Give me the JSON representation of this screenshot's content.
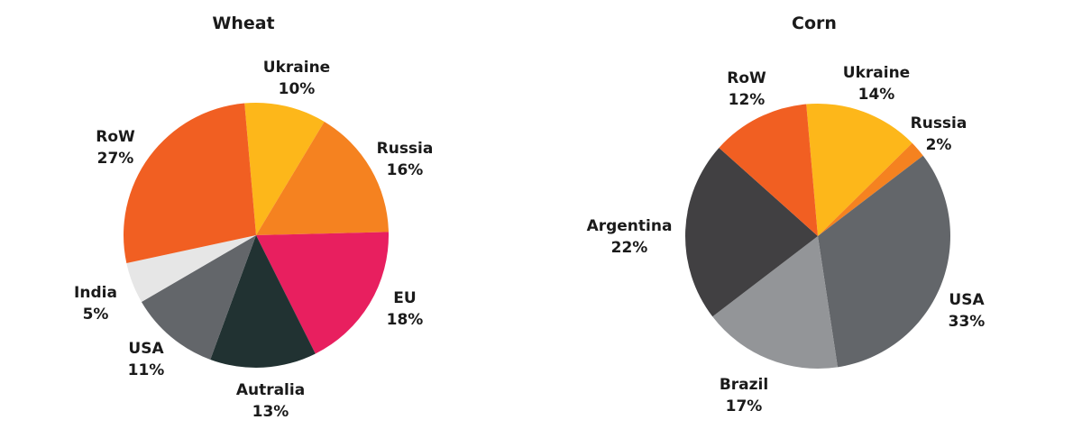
{
  "chart_data": [
    {
      "type": "pie",
      "title": "Wheat",
      "slices": [
        {
          "label": "Ukraine",
          "value": 10,
          "pct_label": "10%",
          "color": "#FDB71A"
        },
        {
          "label": "Russia",
          "value": 16,
          "pct_label": "16%",
          "color": "#F58220"
        },
        {
          "label": "EU",
          "value": 18,
          "pct_label": "18%",
          "color": "#E81F5F"
        },
        {
          "label": "Autralia",
          "value": 13,
          "pct_label": "13%",
          "color": "#213232"
        },
        {
          "label": "USA",
          "value": 11,
          "pct_label": "11%",
          "color": "#63666A"
        },
        {
          "label": "India",
          "value": 5,
          "pct_label": "5%",
          "color": "#E6E6E6"
        },
        {
          "label": "RoW",
          "value": 27,
          "pct_label": "27%",
          "color": "#F15F22"
        }
      ]
    },
    {
      "type": "pie",
      "title": "Corn",
      "slices": [
        {
          "label": "Ukraine",
          "value": 14,
          "pct_label": "14%",
          "color": "#FDB71A"
        },
        {
          "label": "Russia",
          "value": 2,
          "pct_label": "2%",
          "color": "#F58220"
        },
        {
          "label": "USA",
          "value": 33,
          "pct_label": "33%",
          "color": "#63666A"
        },
        {
          "label": "Brazil",
          "value": 17,
          "pct_label": "17%",
          "color": "#939598"
        },
        {
          "label": "Argentina",
          "value": 22,
          "pct_label": "22%",
          "color": "#414042"
        },
        {
          "label": "RoW",
          "value": 12,
          "pct_label": "12%",
          "color": "#F15F22"
        }
      ]
    }
  ]
}
